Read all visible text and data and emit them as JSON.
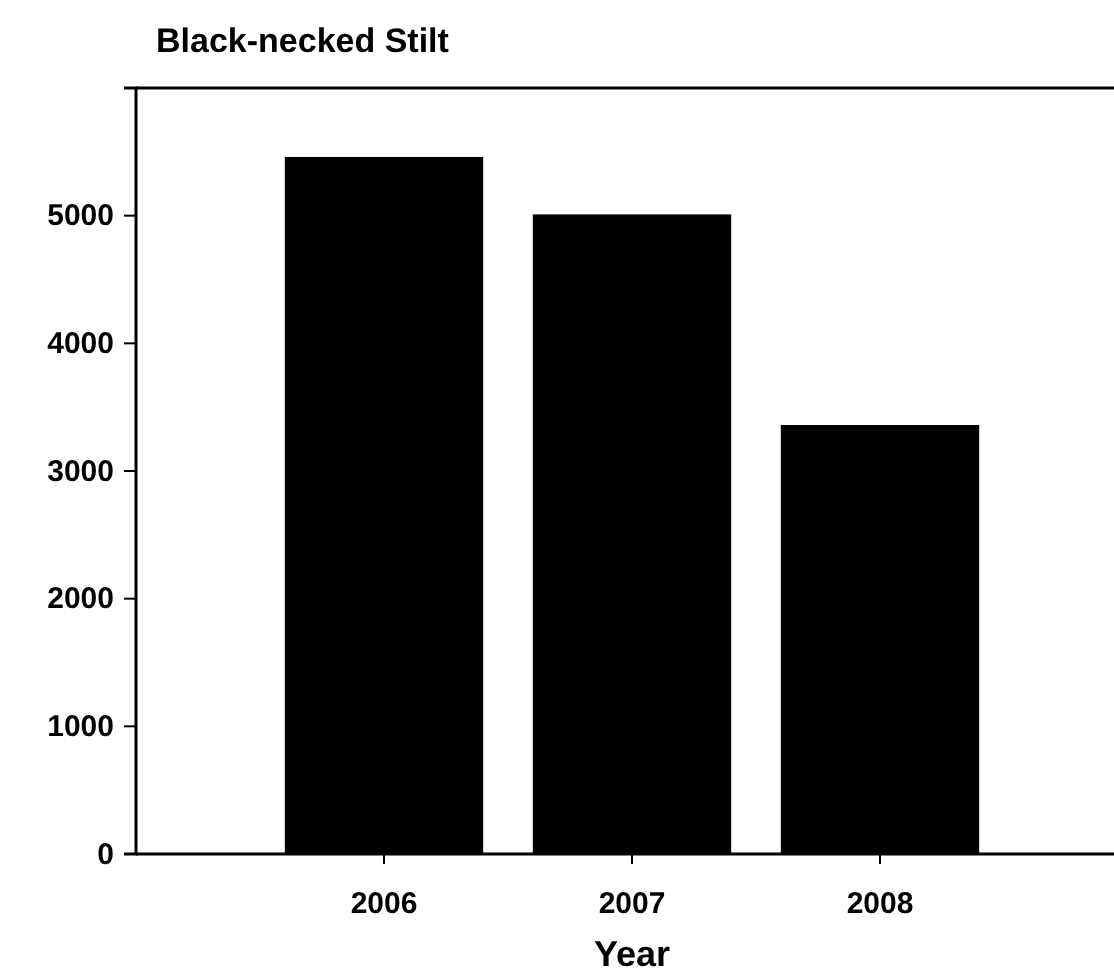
{
  "chart_data": {
    "type": "bar",
    "title": "Black-necked Stilt",
    "xlabel": "Year",
    "categories": [
      "2006",
      "2007",
      "2008"
    ],
    "values": [
      5460,
      5010,
      3360
    ],
    "color": "#000000",
    "ylim": [
      0,
      6000
    ],
    "yticks": [
      0,
      1000,
      2000,
      3000,
      4000,
      5000
    ],
    "grid": false
  }
}
